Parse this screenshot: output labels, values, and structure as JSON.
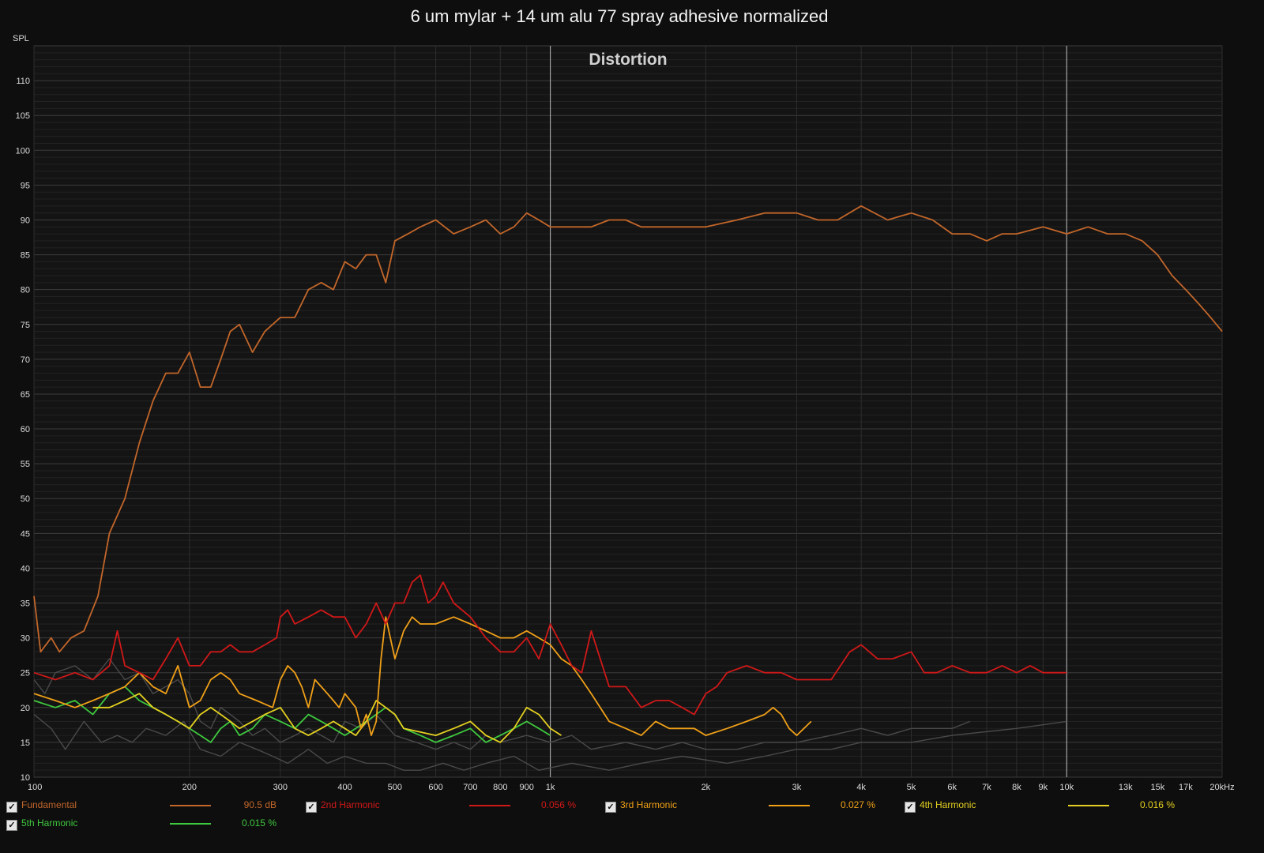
{
  "title": "6 um mylar + 14 um alu 77 spray adhesive normalized",
  "chart_data": {
    "type": "line",
    "title": "6 um mylar + 14 um alu 77 spray adhesive normalized",
    "subtitle": "Distortion",
    "ylabel": "SPL",
    "xunit": "kHz",
    "xscale": "log",
    "xlim": [
      100,
      20000
    ],
    "ylim": [
      10,
      115
    ],
    "grid": true,
    "x_tick_labels": [
      "100",
      "200",
      "300",
      "400",
      "500",
      "600",
      "700",
      "800",
      "900",
      "1k",
      "2k",
      "3k",
      "4k",
      "5k",
      "6k",
      "7k",
      "8k",
      "9k",
      "10k",
      "13k",
      "15k",
      "17k",
      "20kHz"
    ],
    "x_tick_values": [
      100,
      200,
      300,
      400,
      500,
      600,
      700,
      800,
      900,
      1000,
      2000,
      3000,
      4000,
      5000,
      6000,
      7000,
      8000,
      9000,
      10000,
      13000,
      15000,
      17000,
      20000
    ],
    "y_ticks": [
      10,
      15,
      20,
      25,
      30,
      35,
      40,
      45,
      50,
      55,
      60,
      65,
      70,
      75,
      80,
      85,
      90,
      95,
      100,
      105,
      110
    ],
    "series": [
      {
        "name": "Fundamental",
        "color": "#c2662a",
        "value": "90.5 dB",
        "x": [
          100,
          103,
          108,
          112,
          118,
          125,
          133,
          140,
          150,
          160,
          170,
          180,
          190,
          200,
          210,
          220,
          230,
          240,
          250,
          265,
          280,
          300,
          320,
          340,
          360,
          380,
          400,
          420,
          440,
          460,
          480,
          500,
          530,
          560,
          600,
          650,
          700,
          750,
          800,
          850,
          900,
          950,
          1000,
          1100,
          1200,
          1300,
          1400,
          1500,
          1700,
          2000,
          2300,
          2600,
          2800,
          3000,
          3300,
          3600,
          4000,
          4500,
          5000,
          5500,
          6000,
          6500,
          7000,
          7500,
          8000,
          9000,
          10000,
          11000,
          12000,
          13000,
          14000,
          15000,
          16000,
          17000,
          18000,
          19000,
          20000
        ],
        "y": [
          36,
          28,
          30,
          28,
          30,
          31,
          36,
          45,
          50,
          58,
          64,
          68,
          68,
          71,
          66,
          66,
          70,
          74,
          75,
          71,
          74,
          76,
          76,
          80,
          81,
          80,
          84,
          83,
          85,
          85,
          81,
          87,
          88,
          89,
          90,
          88,
          89,
          90,
          88,
          89,
          91,
          90,
          89,
          89,
          89,
          90,
          90,
          89,
          89,
          89,
          90,
          91,
          91,
          91,
          90,
          90,
          92,
          90,
          91,
          90,
          88,
          88,
          87,
          88,
          88,
          89,
          88,
          89,
          88,
          88,
          87,
          85,
          82,
          80,
          78,
          76,
          74
        ]
      },
      {
        "name": "2nd Harmonic",
        "color": "#d01818",
        "value": "0.056 %",
        "x": [
          100,
          110,
          120,
          130,
          140,
          145,
          150,
          160,
          170,
          180,
          190,
          200,
          210,
          220,
          230,
          240,
          250,
          265,
          280,
          295,
          300,
          310,
          320,
          340,
          360,
          380,
          400,
          420,
          440,
          460,
          480,
          500,
          520,
          540,
          560,
          580,
          600,
          620,
          650,
          700,
          750,
          800,
          850,
          900,
          950,
          1000,
          1050,
          1100,
          1150,
          1200,
          1300,
          1400,
          1500,
          1600,
          1700,
          1800,
          1900,
          2000,
          2100,
          2200,
          2400,
          2600,
          2800,
          3000,
          3200,
          3500,
          3800,
          4000,
          4300,
          4600,
          5000,
          5300,
          5600,
          6000,
          6500,
          7000,
          7500,
          8000,
          8500,
          9000,
          9500,
          10000
        ],
        "y": [
          25,
          24,
          25,
          24,
          26,
          31,
          26,
          25,
          24,
          27,
          30,
          26,
          26,
          28,
          28,
          29,
          28,
          28,
          29,
          30,
          33,
          34,
          32,
          33,
          34,
          33,
          33,
          30,
          32,
          35,
          32,
          35,
          35,
          38,
          39,
          35,
          36,
          38,
          35,
          33,
          30,
          28,
          28,
          30,
          27,
          32,
          29,
          26,
          25,
          31,
          23,
          23,
          20,
          21,
          21,
          20,
          19,
          22,
          23,
          25,
          26,
          25,
          25,
          24,
          24,
          24,
          28,
          29,
          27,
          27,
          28,
          25,
          25,
          26,
          25,
          25,
          26,
          25,
          26,
          25,
          25,
          25
        ]
      },
      {
        "name": "3rd Harmonic",
        "color": "#f0a018",
        "value": "0.027 %",
        "x": [
          100,
          110,
          120,
          130,
          140,
          150,
          160,
          170,
          180,
          190,
          200,
          210,
          220,
          230,
          240,
          250,
          270,
          290,
          300,
          310,
          320,
          330,
          340,
          350,
          360,
          370,
          380,
          390,
          400,
          410,
          420,
          430,
          440,
          450,
          460,
          470,
          480,
          500,
          520,
          540,
          560,
          600,
          650,
          700,
          750,
          800,
          850,
          900,
          950,
          1000,
          1050,
          1100,
          1150,
          1200,
          1300,
          1400,
          1500,
          1600,
          1700,
          1800,
          1900,
          2000,
          2200,
          2400,
          2600,
          2700,
          2800,
          2900,
          3000,
          3200
        ],
        "y": [
          22,
          21,
          20,
          21,
          22,
          23,
          25,
          23,
          22,
          26,
          20,
          21,
          24,
          25,
          24,
          22,
          21,
          20,
          24,
          26,
          25,
          23,
          20,
          24,
          23,
          22,
          21,
          20,
          22,
          21,
          20,
          17,
          19,
          16,
          18,
          27,
          33,
          27,
          31,
          33,
          32,
          32,
          33,
          32,
          31,
          30,
          30,
          31,
          30,
          29,
          27,
          26,
          24,
          22,
          18,
          17,
          16,
          18,
          17,
          17,
          17,
          16,
          17,
          18,
          19,
          20,
          19,
          17,
          16,
          18
        ]
      },
      {
        "name": "4th Harmonic",
        "color": "#e4d020",
        "value": "0.016 %",
        "x": [
          130,
          140,
          150,
          160,
          170,
          180,
          190,
          200,
          210,
          220,
          230,
          240,
          250,
          265,
          280,
          300,
          320,
          340,
          360,
          380,
          400,
          420,
          440,
          460,
          480,
          500,
          520,
          600,
          650,
          700,
          750,
          800,
          850,
          900,
          950,
          1000,
          1050
        ],
        "y": [
          20,
          20,
          21,
          22,
          20,
          19,
          18,
          17,
          19,
          20,
          19,
          18,
          17,
          18,
          19,
          20,
          17,
          16,
          17,
          18,
          17,
          16,
          18,
          21,
          20,
          19,
          17,
          16,
          17,
          18,
          16,
          15,
          17,
          20,
          19,
          17,
          16
        ]
      },
      {
        "name": "5th Harmonic",
        "color": "#3ec83e",
        "value": "0.015 %",
        "x": [
          100,
          110,
          120,
          130,
          140,
          150,
          160,
          170,
          180,
          190,
          200,
          210,
          220,
          230,
          240,
          250,
          265,
          280,
          300,
          320,
          340,
          360,
          380,
          400,
          420,
          440,
          460,
          480,
          500,
          520,
          560,
          600,
          650,
          700,
          750,
          800,
          850,
          900,
          950,
          1000
        ],
        "y": [
          21,
          20,
          21,
          19,
          22,
          23,
          21,
          20,
          19,
          18,
          17,
          16,
          15,
          17,
          18,
          16,
          17,
          19,
          18,
          17,
          19,
          18,
          17,
          16,
          17,
          18,
          19,
          20,
          19,
          17,
          16,
          15,
          16,
          17,
          15,
          16,
          17,
          18,
          17,
          16
        ]
      }
    ],
    "noise_series": [
      {
        "x": [
          100,
          105,
          110,
          120,
          130,
          140,
          150,
          160,
          170,
          180,
          190,
          200,
          210,
          220,
          230,
          240,
          250,
          265,
          280,
          300,
          320,
          340,
          360,
          380,
          400,
          430,
          460,
          500,
          550,
          600,
          650,
          700,
          750,
          800,
          900,
          1000,
          1100,
          1200,
          1400,
          1600,
          1800,
          2000,
          2300,
          2600,
          3000,
          3500,
          4000,
          4500,
          5000,
          5500,
          6000,
          6500
        ],
        "y": [
          24,
          22,
          25,
          26,
          24,
          27,
          24,
          25,
          22,
          23,
          24,
          22,
          18,
          17,
          20,
          19,
          18,
          16,
          17,
          15,
          16,
          17,
          16,
          15,
          18,
          17,
          19,
          16,
          15,
          14,
          15,
          14,
          16,
          15,
          16,
          15,
          16,
          14,
          15,
          14,
          15,
          14,
          14,
          15,
          15,
          16,
          17,
          16,
          17,
          17,
          17,
          18
        ]
      },
      {
        "name": "noise2",
        "x": [
          100,
          108,
          115,
          125,
          135,
          145,
          155,
          165,
          180,
          195,
          210,
          230,
          250,
          270,
          290,
          310,
          340,
          370,
          400,
          440,
          480,
          520,
          560,
          620,
          680,
          750,
          850,
          950,
          1100,
          1300,
          1500,
          1800,
          2200,
          2600,
          3000,
          3500,
          4000,
          5000,
          6000,
          8000,
          10000
        ],
        "y": [
          19,
          17,
          14,
          18,
          15,
          16,
          15,
          17,
          16,
          18,
          14,
          13,
          15,
          14,
          13,
          12,
          14,
          12,
          13,
          12,
          12,
          11,
          11,
          12,
          11,
          12,
          13,
          11,
          12,
          11,
          12,
          13,
          12,
          13,
          14,
          14,
          15,
          15,
          16,
          17,
          18
        ]
      }
    ],
    "legend_position": "bottom"
  },
  "legend": [
    {
      "label": "Fundamental",
      "value": "90.5 dB",
      "color": "#c2662a",
      "checkbox": "✓"
    },
    {
      "label": "2nd Harmonic",
      "value": "0.056 %",
      "color": "#d01818",
      "checkbox": "✓"
    },
    {
      "label": "3rd Harmonic",
      "value": "0.027 %",
      "color": "#f0a018",
      "checkbox": "✓"
    },
    {
      "label": "4th Harmonic",
      "value": "0.016 %",
      "color": "#e4d020",
      "checkbox": "✓"
    },
    {
      "label": "5th Harmonic",
      "value": "0.015 %",
      "color": "#3ec83e",
      "checkbox": "✓"
    }
  ]
}
